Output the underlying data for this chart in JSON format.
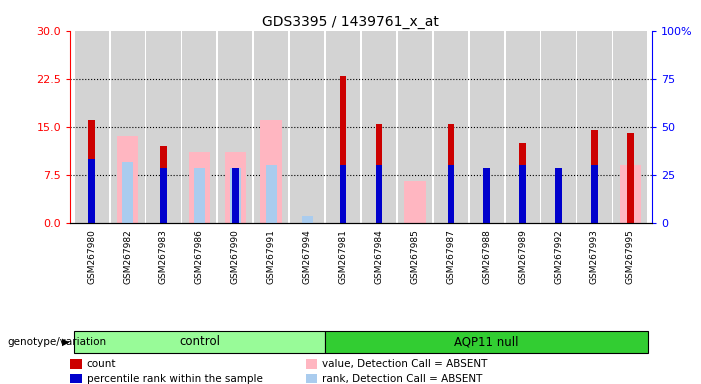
{
  "title": "GDS3395 / 1439761_x_at",
  "samples": [
    "GSM267980",
    "GSM267982",
    "GSM267983",
    "GSM267986",
    "GSM267990",
    "GSM267991",
    "GSM267994",
    "GSM267981",
    "GSM267984",
    "GSM267985",
    "GSM267987",
    "GSM267988",
    "GSM267989",
    "GSM267992",
    "GSM267993",
    "GSM267995"
  ],
  "groups": [
    "control",
    "control",
    "control",
    "control",
    "control",
    "control",
    "control",
    "AQP11 null",
    "AQP11 null",
    "AQP11 null",
    "AQP11 null",
    "AQP11 null",
    "AQP11 null",
    "AQP11 null",
    "AQP11 null",
    "AQP11 null"
  ],
  "count": [
    16,
    0,
    12,
    0,
    0,
    0,
    0,
    23,
    15.5,
    0,
    15.5,
    0,
    12.5,
    0,
    14.5,
    14
  ],
  "percentile_rank": [
    10,
    0,
    8.5,
    0,
    8.5,
    0,
    0,
    9,
    9,
    0,
    9,
    8.5,
    9,
    8.5,
    9,
    0
  ],
  "value_absent": [
    0,
    13.5,
    0,
    11,
    11,
    16,
    0,
    0,
    0,
    6.5,
    0,
    0,
    0,
    0,
    0,
    9
  ],
  "rank_absent": [
    0,
    9.5,
    0,
    8.5,
    8.5,
    9,
    1,
    0,
    0,
    0,
    0,
    0,
    0,
    0,
    0,
    0
  ],
  "ylim_left": [
    0,
    30
  ],
  "ylim_right": [
    0,
    100
  ],
  "yticks_left": [
    0,
    7.5,
    15,
    22.5,
    30
  ],
  "yticks_right": [
    0,
    25,
    50,
    75,
    100
  ],
  "color_count": "#CC0000",
  "color_rank": "#0000CC",
  "color_value_absent": "#FFB6C1",
  "color_rank_absent": "#AACCEE",
  "color_bg": "#D3D3D3",
  "legend_items": [
    "count",
    "percentile rank within the sample",
    "value, Detection Call = ABSENT",
    "rank, Detection Call = ABSENT"
  ],
  "n_control": 7,
  "n_aqp11": 9,
  "ctrl_color": "#98FB98",
  "aqp_color": "#32CD32"
}
